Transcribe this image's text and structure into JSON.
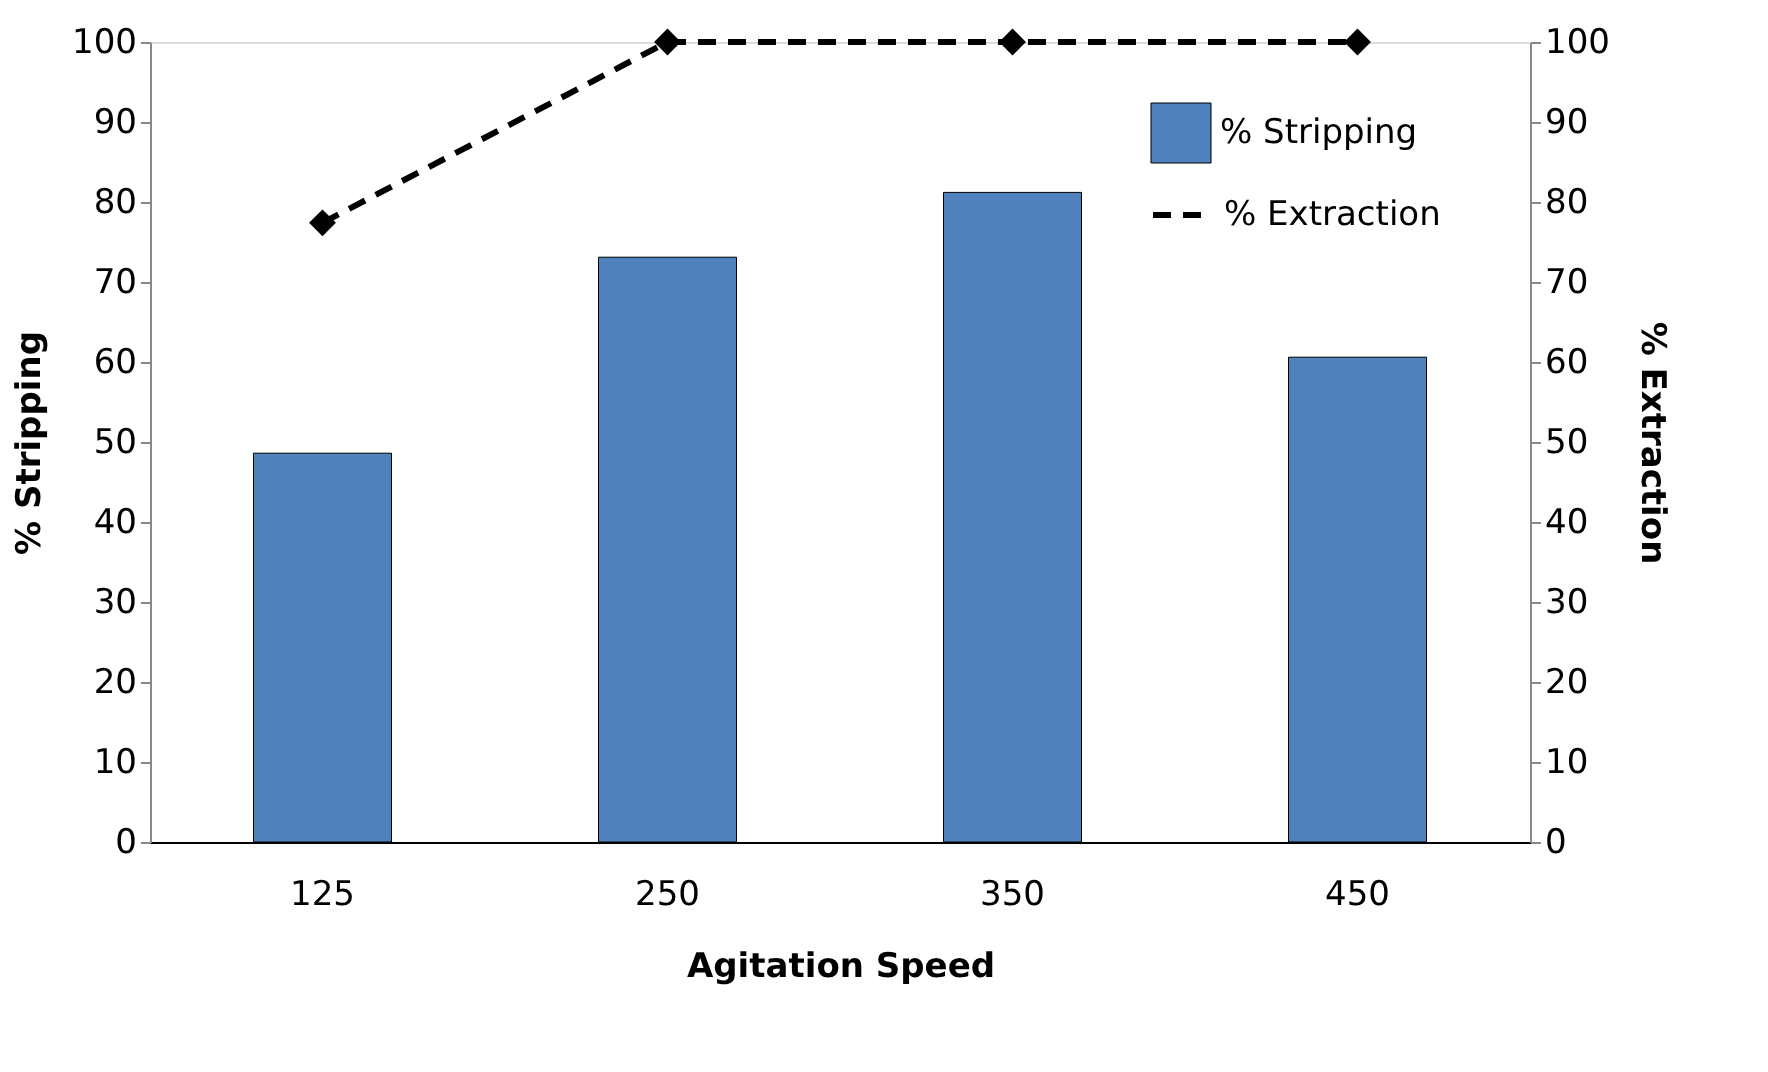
{
  "chart_data": {
    "type": "bar",
    "xlabel": "Agitation Speed",
    "ylabel": "% Stripping",
    "y2label": "% Extraction",
    "categories": [
      "125",
      "250",
      "350",
      "450"
    ],
    "series": [
      {
        "name": "% Stripping",
        "color": "#4f81bd",
        "values": [
          48.6,
          73.1,
          81.2,
          60.6
        ]
      },
      {
        "name": "% Extraction",
        "type": "line",
        "axis": "y2",
        "color": "#000000",
        "marker": "diamond",
        "line_style": "dashed",
        "values": [
          77.4,
          100,
          100,
          100
        ]
      }
    ],
    "ylim": [
      0,
      100
    ],
    "yticks": [
      0,
      10,
      20,
      30,
      40,
      50,
      60,
      70,
      80,
      90,
      100
    ],
    "y2lim": [
      0,
      100
    ],
    "y2ticks": [
      0,
      10,
      20,
      30,
      40,
      50,
      60,
      70,
      80,
      90,
      100
    ],
    "grid": false,
    "legend": "top right"
  }
}
